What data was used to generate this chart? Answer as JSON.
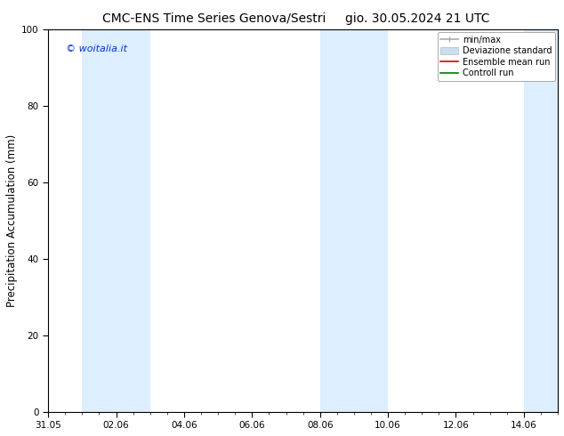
{
  "title_left": "CMC-ENS Time Series Genova/Sestri",
  "title_right": "gio. 30.05.2024 21 UTC",
  "ylabel": "Precipitation Accumulation (mm)",
  "watermark": "© woitalia.it",
  "watermark_color": "#0033cc",
  "ylim": [
    0,
    100
  ],
  "yticks": [
    0,
    20,
    40,
    60,
    80,
    100
  ],
  "x_tick_labels": [
    "31.05",
    "02.06",
    "04.06",
    "06.06",
    "08.06",
    "10.06",
    "12.06",
    "14.06"
  ],
  "x_tick_positions": [
    0,
    2,
    4,
    6,
    8,
    10,
    12,
    14
  ],
  "xlim": [
    0,
    15
  ],
  "shaded_bands": [
    {
      "xstart": 1,
      "xend": 3
    },
    {
      "xstart": 8,
      "xend": 10
    },
    {
      "xstart": 14,
      "xend": 16
    }
  ],
  "shaded_color": "#ddeeff",
  "legend_items": [
    {
      "label": "min/max",
      "type": "errorbar",
      "color": "#aaaaaa"
    },
    {
      "label": "Deviazione standard",
      "type": "fill",
      "color": "#ccddee"
    },
    {
      "label": "Ensemble mean run",
      "type": "line",
      "color": "#dd0000"
    },
    {
      "label": "Controll run",
      "type": "line",
      "color": "#007700"
    }
  ],
  "background_color": "#ffffff",
  "title_fontsize": 10,
  "tick_fontsize": 7.5,
  "ylabel_fontsize": 8.5,
  "watermark_fontsize": 8,
  "legend_fontsize": 7
}
